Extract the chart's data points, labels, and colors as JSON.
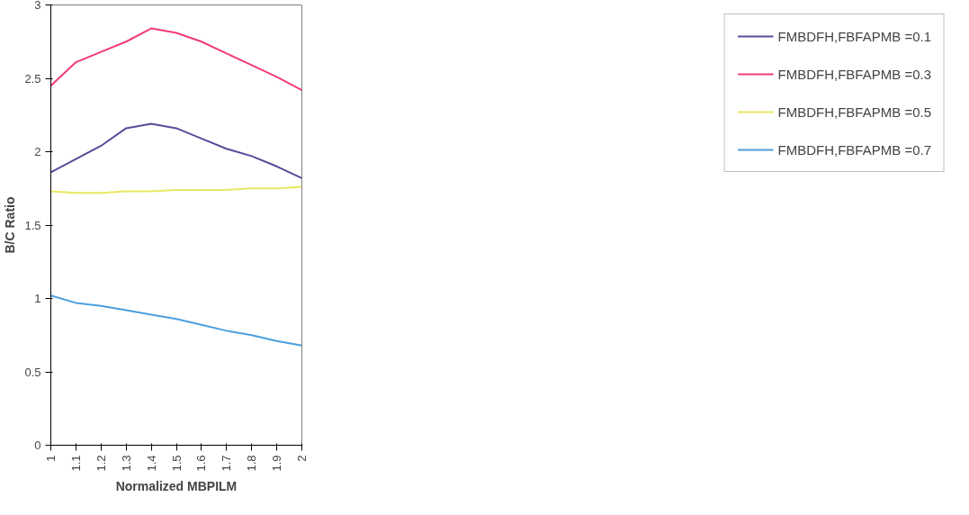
{
  "chart_data": {
    "type": "line",
    "xlabel": "Normalized MBPILM",
    "ylabel": "B/C Ratio",
    "x": [
      1,
      1.1,
      1.2,
      1.3,
      1.4,
      1.5,
      1.6,
      1.7,
      1.8,
      1.9,
      2
    ],
    "xlim": [
      1,
      2
    ],
    "xticks": [
      1,
      1.1,
      1.2,
      1.3,
      1.4,
      1.5,
      1.6,
      1.7,
      1.8,
      1.9,
      2
    ],
    "ylim": [
      0,
      3
    ],
    "yticks": [
      0,
      0.5,
      1,
      1.5,
      2,
      2.5,
      3
    ],
    "grid": false,
    "legend": "right",
    "marker": "none",
    "line_style": "solid",
    "series": [
      {
        "name": "FMBDFH,FBFAPMB =0.1",
        "color": "#5b4a9a",
        "values": [
          1.86,
          1.95,
          2.04,
          2.16,
          2.19,
          2.16,
          2.09,
          2.02,
          1.97,
          1.9,
          1.82
        ]
      },
      {
        "name": "FMBDFH,FBFAPMB =0.3",
        "color": "#f03c78",
        "values": [
          2.45,
          2.61,
          2.68,
          2.75,
          2.84,
          2.81,
          2.75,
          2.67,
          2.59,
          2.51,
          2.42
        ]
      },
      {
        "name": "FMBDFH,FBFAPMB =0.5",
        "color": "#e8e860",
        "values": [
          1.73,
          1.72,
          1.72,
          1.73,
          1.73,
          1.74,
          1.74,
          1.74,
          1.75,
          1.75,
          1.76
        ]
      },
      {
        "name": "FMBDFH,FBFAPMB =0.7",
        "color": "#4aa0e0",
        "values": [
          1.02,
          0.97,
          0.95,
          0.92,
          0.89,
          0.86,
          0.82,
          0.78,
          0.75,
          0.71,
          0.68
        ]
      }
    ]
  }
}
